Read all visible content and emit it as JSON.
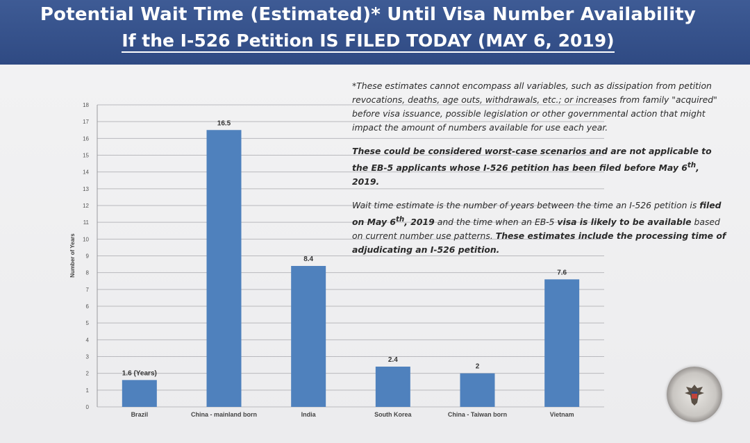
{
  "title": "Potential Wait Time (Estimated)* Until Visa Number Availability",
  "subtitle": "If the I-526 Petition IS FILED TODAY (MAY 6, 2019)",
  "notes": {
    "p1": "*These estimates cannot encompass all variables, such as dissipation from petition revocations, deaths, age outs, withdrawals, etc.; or increases from family \"acquired\" before visa issuance, possible legislation or other governmental action that might impact the amount of numbers available for use each year.",
    "p2_a": "These could be considered worst-case scenarios and are not applicable to the EB-5 applicants whose I-526 petition has been filed before May 6",
    "p2_sup": "th",
    "p2_b": ", 2019.",
    "p3_a": "Wait time estimate is the number of years between the time an I-526 petition is ",
    "p3_b": "filed on May 6",
    "p3_sup": "th",
    "p3_c": ", 2019",
    "p3_d": " and the time when an EB-5 ",
    "p3_e": "visa is likely to be available",
    "p3_f": " based on current number use patterns. ",
    "p3_g": "These estimates include the processing time of adjudicating an I-526 petition."
  },
  "chart_data": {
    "type": "bar",
    "categories": [
      "Brazil",
      "China - mainland born",
      "India",
      "South Korea",
      "China - Taiwan born",
      "Vietnam"
    ],
    "values": [
      1.6,
      16.5,
      8.4,
      2.4,
      2,
      7.6
    ],
    "data_labels": [
      "1.6 (Years)",
      "16.5",
      "8.4",
      "2.4",
      "2",
      "7.6"
    ],
    "ylabel": "Number of Years",
    "ylim": [
      0,
      18
    ],
    "yticks": [
      "0",
      "1",
      "2",
      "3",
      "4",
      "5",
      "6",
      "7",
      "8",
      "9",
      "10",
      "11",
      "12",
      "13",
      "14",
      "15",
      "16",
      "17",
      "18"
    ],
    "grid": true,
    "bar_color": "#4f81bd"
  }
}
